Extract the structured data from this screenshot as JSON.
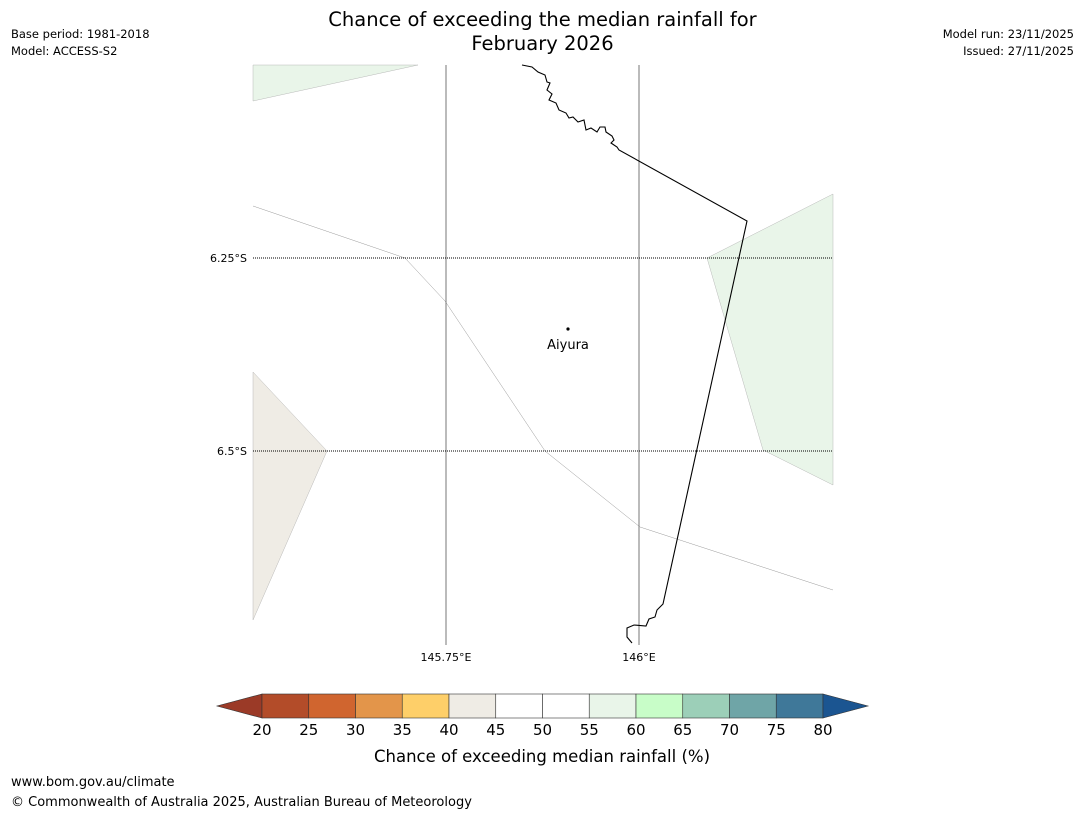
{
  "header": {
    "title_line1": "Chance of exceeding the median rainfall for",
    "title_line2": "February 2026",
    "base_period": "Base period: 1981-2018",
    "model": "Model: ACCESS-S2",
    "model_run": "Model run: 23/11/2025",
    "issued": "Issued: 27/11/2025"
  },
  "map": {
    "place": "Aiyura",
    "lat_labels": [
      "6.25°S",
      "6.5°S"
    ],
    "lon_labels": [
      "145.75°E",
      "146°E"
    ],
    "colors": {
      "wetter_fill": "#e9f5e9",
      "drier_fill": "#efece5",
      "coastline": "#000000",
      "gridline": "#000000",
      "boundary": "#999999"
    }
  },
  "colorbar": {
    "ticks": [
      "20",
      "25",
      "30",
      "35",
      "40",
      "45",
      "50",
      "55",
      "60",
      "65",
      "70",
      "75",
      "80"
    ],
    "label": "Chance of exceeding median rainfall (%)",
    "colors": [
      "#b34c29",
      "#d0652f",
      "#e3954a",
      "#fecf69",
      "#efece5",
      "#ffffff",
      "#ffffff",
      "#e9f5e9",
      "#c8fdc8",
      "#9ccfb8",
      "#6fa5a7",
      "#3f7899"
    ],
    "under_color": "#9b3a27",
    "over_color": "#1b5591"
  },
  "footer": {
    "url": "www.bom.gov.au/climate",
    "copyright": "© Commonwealth of Australia 2025, Australian Bureau of Meteorology"
  }
}
